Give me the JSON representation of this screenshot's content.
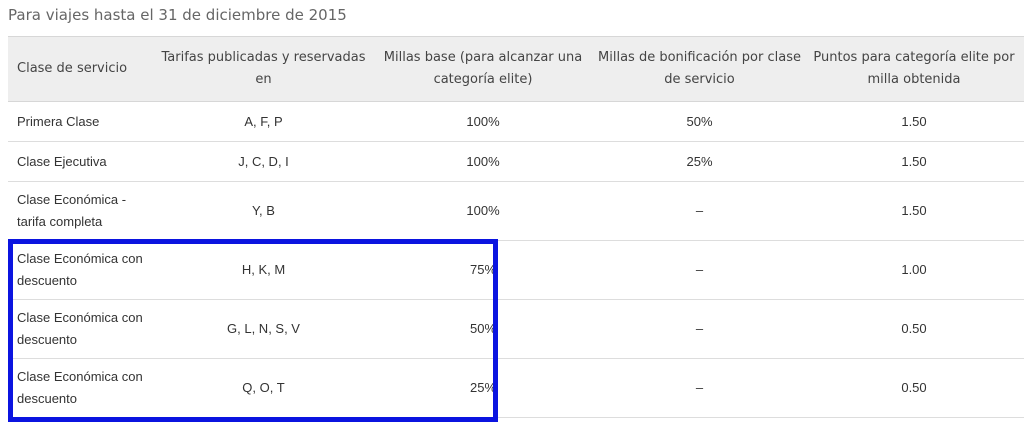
{
  "caption": "Para viajes hasta el 31 de diciembre de 2015",
  "table": {
    "headers": [
      "Clase de servicio",
      "Tarifas publicadas y reservadas en",
      "Millas base (para alcanzar una categoría elite)",
      "Millas de bonificación por clase de servicio",
      "Puntos para categoría elite por milla obtenida"
    ],
    "rows": [
      [
        "Primera Clase",
        "A, F, P",
        "100%",
        "50%",
        "1.50"
      ],
      [
        "Clase Ejecutiva",
        "J, C, D, I",
        "100%",
        "25%",
        "1.50"
      ],
      [
        "Clase Económica - tarifa completa",
        "Y, B",
        "100%",
        "–",
        "1.50"
      ],
      [
        "Clase Económica con descuento",
        "H, K, M",
        "75%",
        "–",
        "1.00"
      ],
      [
        "Clase Económica con descuento",
        "G, L, N, S, V",
        "50%",
        "–",
        "0.50"
      ],
      [
        "Clase Económica con descuento",
        "Q, O, T",
        "25%",
        "–",
        "0.50"
      ]
    ]
  },
  "colors": {
    "highlight": "#0b14e0",
    "header_background": "#eeeeee"
  }
}
